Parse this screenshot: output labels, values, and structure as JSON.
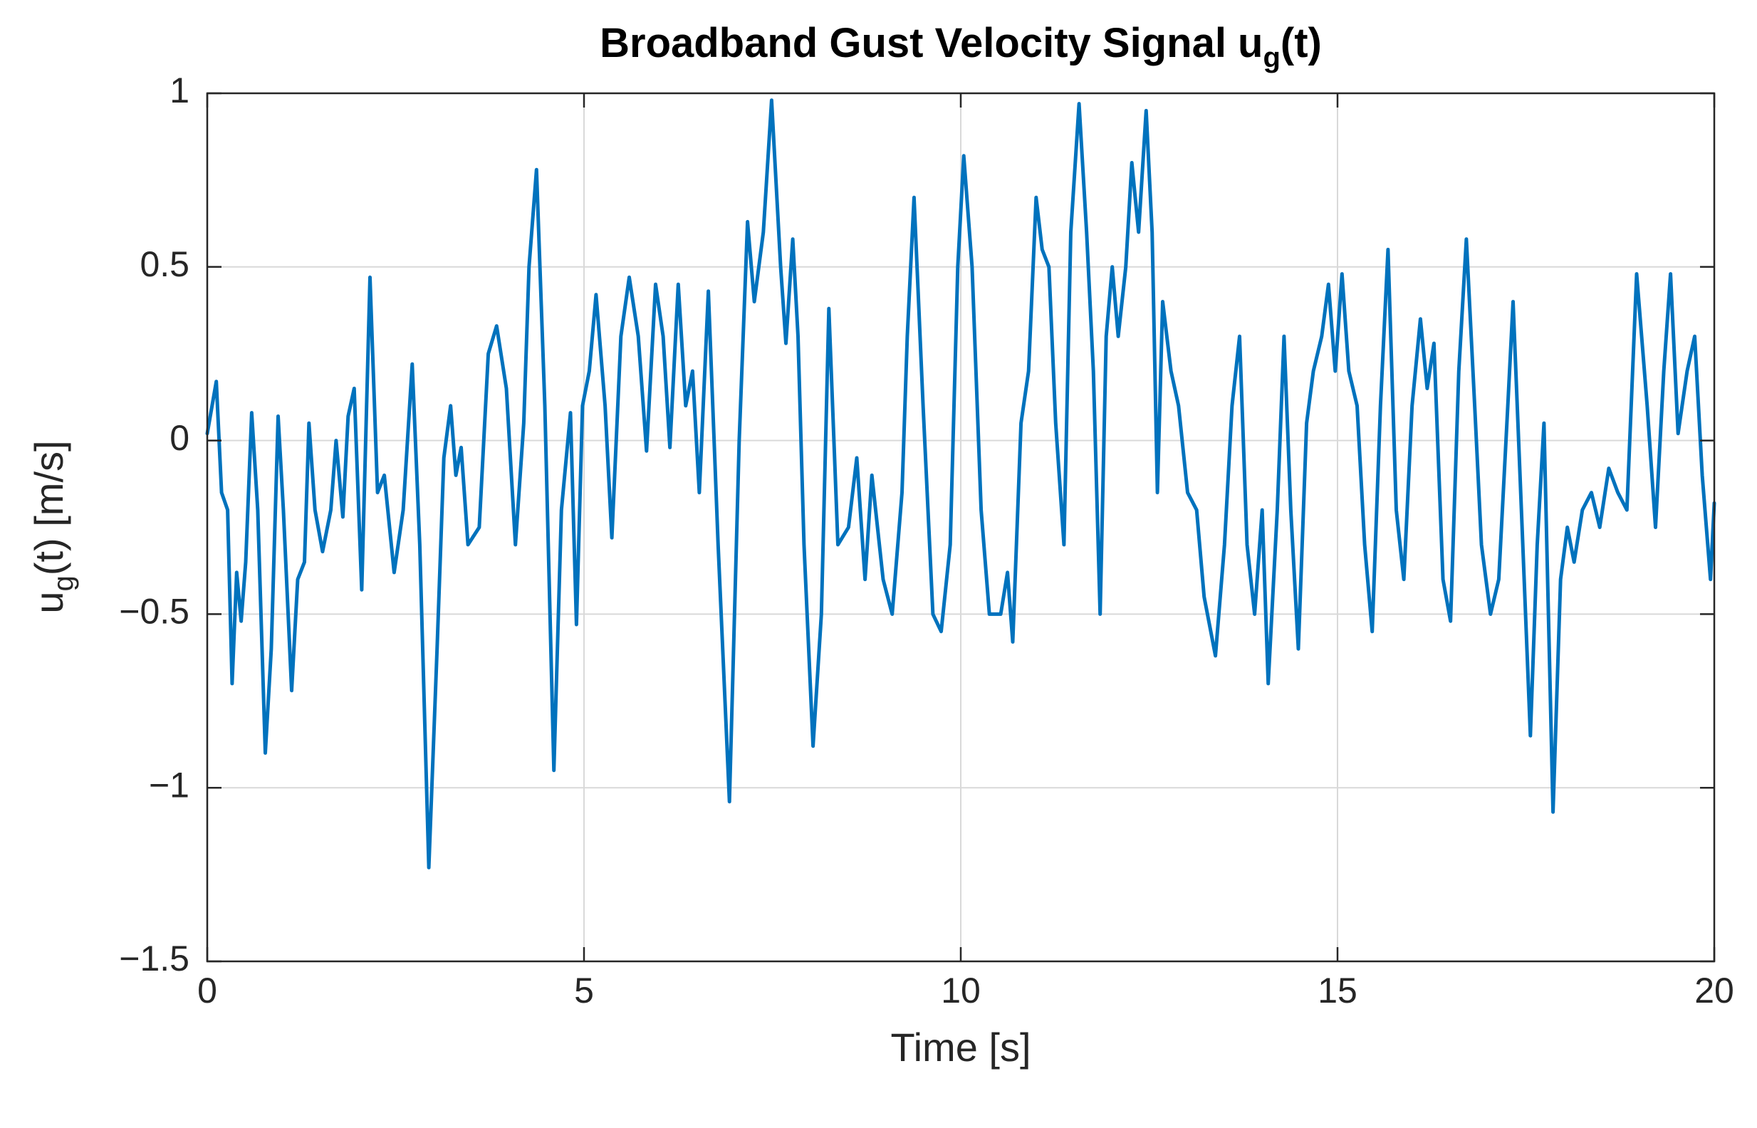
{
  "chart_data": {
    "type": "line",
    "title": [
      "Broadband Gust Velocity Signal u",
      "g",
      "(t)"
    ],
    "xlabel": "Time [s]",
    "ylabel": [
      "u",
      "g",
      "(t) [m/s]"
    ],
    "color": "#0072BD",
    "grid": true,
    "xlim": [
      0,
      20
    ],
    "ylim": [
      -1.5,
      1
    ],
    "xticks": [
      0,
      5,
      10,
      15,
      20
    ],
    "yticks": [
      {
        "value": -1.5,
        "label": "−1.5"
      },
      {
        "value": -1,
        "label": "−1"
      },
      {
        "value": -0.5,
        "label": "−0.5"
      },
      0,
      0.5,
      1
    ],
    "x": [
      0,
      0.12,
      0.19,
      0.27,
      0.33,
      0.39,
      0.45,
      0.51,
      0.59,
      0.67,
      0.77,
      0.85,
      0.94,
      1.01,
      1.12,
      1.2,
      1.29,
      1.35,
      1.43,
      1.53,
      1.64,
      1.71,
      1.8,
      1.87,
      1.95,
      2.05,
      2.16,
      2.26,
      2.35,
      2.48,
      2.6,
      2.72,
      2.82,
      2.94,
      3.05,
      3.14,
      3.23,
      3.3,
      3.37,
      3.46,
      3.61,
      3.73,
      3.84,
      3.97,
      4.09,
      4.2,
      4.27,
      4.37,
      4.48,
      4.6,
      4.7,
      4.82,
      4.9,
      4.98,
      5.07,
      5.16,
      5.28,
      5.37,
      5.49,
      5.6,
      5.72,
      5.83,
      5.95,
      6.05,
      6.14,
      6.25,
      6.35,
      6.44,
      6.53,
      6.65,
      6.78,
      6.93,
      7.06,
      7.17,
      7.26,
      7.38,
      7.49,
      7.61,
      7.68,
      7.77,
      7.84,
      7.92,
      8.04,
      8.15,
      8.25,
      8.37,
      8.51,
      8.62,
      8.73,
      8.82,
      8.97,
      9.09,
      9.22,
      9.29,
      9.38,
      9.5,
      9.63,
      9.74,
      9.86,
      9.96,
      10.04,
      10.15,
      10.27,
      10.38,
      10.53,
      10.62,
      10.69,
      10.8,
      10.9,
      11.0,
      11.08,
      11.17,
      11.26,
      11.37,
      11.46,
      11.57,
      11.67,
      11.76,
      11.85,
      11.93,
      12.01,
      12.09,
      12.19,
      12.27,
      12.36,
      12.46,
      12.54,
      12.61,
      12.68,
      12.79,
      12.89,
      13.01,
      13.13,
      13.23,
      13.38,
      13.5,
      13.6,
      13.7,
      13.8,
      13.9,
      14.0,
      14.08,
      14.2,
      14.29,
      14.38,
      14.48,
      14.59,
      14.68,
      14.79,
      14.88,
      14.97,
      15.06,
      15.15,
      15.26,
      15.36,
      15.46,
      15.57,
      15.67,
      15.78,
      15.88,
      15.99,
      16.1,
      16.19,
      16.28,
      16.4,
      16.5,
      16.61,
      16.71,
      16.82,
      16.91,
      17.03,
      17.14,
      17.26,
      17.33,
      17.44,
      17.56,
      17.65,
      17.74,
      17.86,
      17.96,
      18.05,
      18.14,
      18.25,
      18.37,
      18.48,
      18.6,
      18.72,
      18.84,
      18.97,
      19.11,
      19.22,
      19.33,
      19.42,
      19.52,
      19.64,
      19.74,
      19.84,
      19.95,
      20.0
    ],
    "values": [
      0.02,
      0.17,
      -0.15,
      -0.2,
      -0.7,
      -0.38,
      -0.52,
      -0.35,
      0.08,
      -0.2,
      -0.9,
      -0.6,
      0.07,
      -0.2,
      -0.72,
      -0.4,
      -0.35,
      0.05,
      -0.2,
      -0.32,
      -0.2,
      0.0,
      -0.22,
      0.07,
      0.15,
      -0.43,
      0.47,
      -0.15,
      -0.1,
      -0.38,
      -0.2,
      0.22,
      -0.3,
      -1.23,
      -0.6,
      -0.05,
      0.1,
      -0.1,
      -0.02,
      -0.3,
      -0.25,
      0.25,
      0.33,
      0.15,
      -0.3,
      0.05,
      0.5,
      0.78,
      0.1,
      -0.95,
      -0.2,
      0.08,
      -0.53,
      0.1,
      0.2,
      0.42,
      0.1,
      -0.28,
      0.3,
      0.47,
      0.3,
      -0.03,
      0.45,
      0.3,
      -0.02,
      0.45,
      0.1,
      0.2,
      -0.15,
      0.43,
      -0.3,
      -1.04,
      0.0,
      0.63,
      0.4,
      0.6,
      0.98,
      0.5,
      0.28,
      0.58,
      0.3,
      -0.3,
      -0.88,
      -0.5,
      0.38,
      -0.3,
      -0.25,
      -0.05,
      -0.4,
      -0.1,
      -0.4,
      -0.5,
      -0.15,
      0.3,
      0.7,
      0.1,
      -0.5,
      -0.55,
      -0.3,
      0.5,
      0.82,
      0.5,
      -0.2,
      -0.5,
      -0.5,
      -0.38,
      -0.58,
      0.05,
      0.2,
      0.7,
      0.55,
      0.5,
      0.05,
      -0.3,
      0.6,
      0.97,
      0.6,
      0.2,
      -0.5,
      0.3,
      0.5,
      0.3,
      0.5,
      0.8,
      0.6,
      0.95,
      0.6,
      -0.15,
      0.4,
      0.2,
      0.1,
      -0.15,
      -0.2,
      -0.45,
      -0.62,
      -0.3,
      0.1,
      0.3,
      -0.3,
      -0.5,
      -0.2,
      -0.7,
      -0.2,
      0.3,
      -0.2,
      -0.6,
      0.05,
      0.2,
      0.3,
      0.45,
      0.2,
      0.48,
      0.2,
      0.1,
      -0.3,
      -0.55,
      0.1,
      0.55,
      -0.2,
      -0.4,
      0.1,
      0.35,
      0.15,
      0.28,
      -0.4,
      -0.52,
      0.2,
      0.58,
      0.1,
      -0.3,
      -0.5,
      -0.4,
      0.1,
      0.4,
      -0.2,
      -0.85,
      -0.3,
      0.05,
      -1.07,
      -0.4,
      -0.25,
      -0.35,
      -0.2,
      -0.15,
      -0.25,
      -0.08,
      -0.15,
      -0.2,
      0.48,
      0.1,
      -0.25,
      0.2,
      0.48,
      0.02,
      0.2,
      0.3,
      -0.1,
      -0.4,
      -0.18
    ]
  }
}
